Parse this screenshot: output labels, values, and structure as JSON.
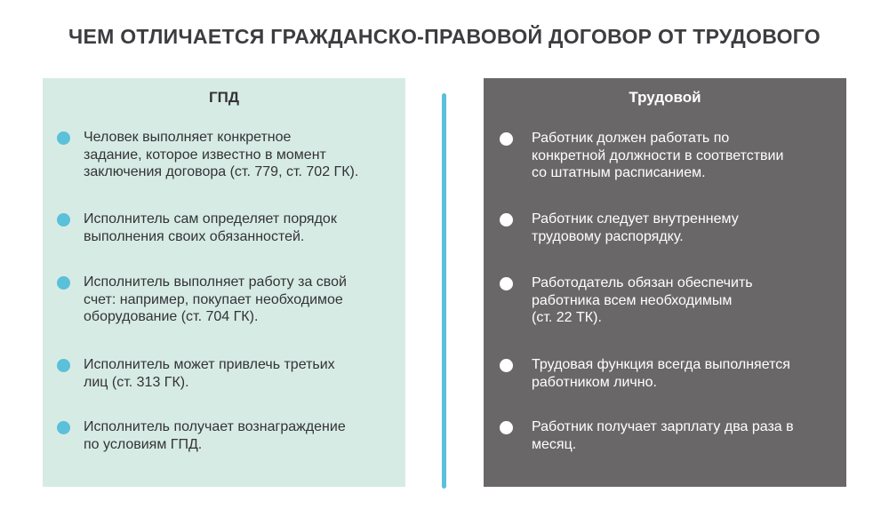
{
  "title": "ЧЕМ ОТЛИЧАЕТСЯ ГРАЖДАНСКО-ПРАВОВОЙ ДОГОВОР ОТ ТРУДОВОГО",
  "colors": {
    "left_panel_bg": "#d7ebe5",
    "right_panel_bg": "#6a6769",
    "accent": "#5bc0d9",
    "title_text": "#3d3c40"
  },
  "gpd": {
    "heading": "ГПД",
    "items": [
      "Человек выполняет конкретное\nзадание, которое известно в момент\nзаключения договора (ст. 779, ст. 702 ГК).",
      "Исполнитель сам определяет порядок\nвыполнения своих обязанностей.",
      "Исполнитель выполняет работу за свой\nсчет: например, покупает необходимое\nоборудование (ст. 704 ГК).",
      "Исполнитель может привлечь третьих\nлиц (ст. 313 ГК).",
      "Исполнитель получает вознаграждение\nпо условиям ГПД."
    ]
  },
  "labor": {
    "heading": "Трудовой",
    "items": [
      "Работник должен работать по\nконкретной должности в соответствии\nсо штатным расписанием.",
      "Работник следует внутреннему\nтрудовому распорядку.",
      "Работодатель обязан обеспечить\nработника всем необходимым\n(ст. 22 ТК).",
      "Трудовая функция всегда выполняется\nработником лично.",
      "Работник получает зарплату два раза в\nмесяц."
    ]
  }
}
